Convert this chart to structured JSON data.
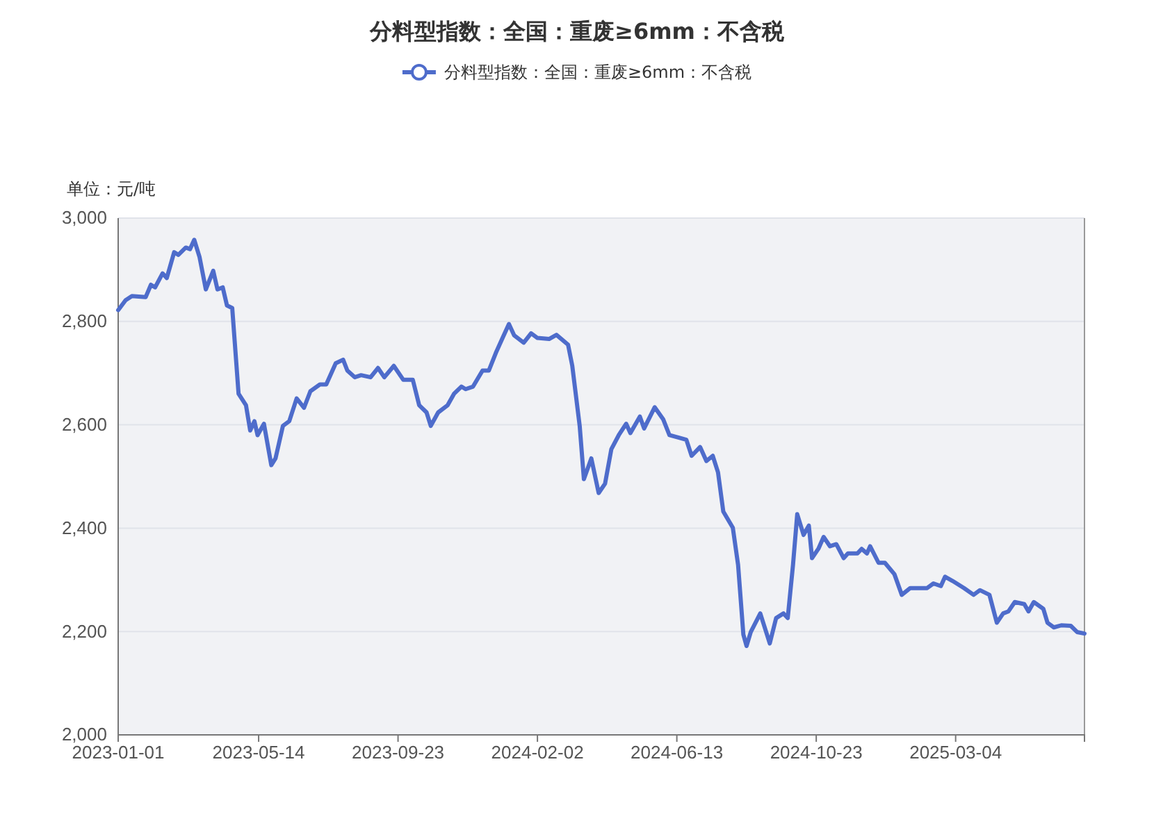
{
  "chart_data": {
    "type": "line",
    "title": "分料型指数：全国：重废≥6mm：不含税",
    "ylabel": "单位：元/吨",
    "legend": "top",
    "grid": "y",
    "line_style": "solid",
    "xlim": [
      "2023-01-01",
      "2025-07-04"
    ],
    "xticks": [
      {
        "value": "2023-01-01",
        "label": "2023-01-01"
      },
      {
        "value": "2023-05-14",
        "label": "2023-05-14"
      },
      {
        "value": "2023-09-23",
        "label": "2023-09-23"
      },
      {
        "value": "2024-02-02",
        "label": "2024-02-02"
      },
      {
        "value": "2024-06-13",
        "label": "2024-06-13"
      },
      {
        "value": "2024-10-23",
        "label": "2024-10-23"
      },
      {
        "value": "2025-03-04",
        "label": "2025-03-04"
      }
    ],
    "ylim": [
      2000,
      3000
    ],
    "yticks": [
      {
        "value": 2000,
        "label": "2,000"
      },
      {
        "value": 2200,
        "label": "2,200"
      },
      {
        "value": 2400,
        "label": "2,400"
      },
      {
        "value": 2600,
        "label": "2,600"
      },
      {
        "value": 2800,
        "label": "2,800"
      },
      {
        "value": 3000,
        "label": "3,000"
      }
    ],
    "series": [
      {
        "name": "分料型指数：全国：重废≥6mm：不含税",
        "color": "#4e6ccb",
        "x": [
          "2023-01-01",
          "2023-01-08",
          "2023-01-14",
          "2023-01-27",
          "2023-02-01",
          "2023-02-05",
          "2023-02-12",
          "2023-02-16",
          "2023-02-23",
          "2023-02-27",
          "2023-03-06",
          "2023-03-10",
          "2023-03-14",
          "2023-03-19",
          "2023-03-25",
          "2023-04-01",
          "2023-04-05",
          "2023-04-10",
          "2023-04-14",
          "2023-04-19",
          "2023-04-25",
          "2023-05-02",
          "2023-05-06",
          "2023-05-10",
          "2023-05-13",
          "2023-05-19",
          "2023-05-26",
          "2023-05-30",
          "2023-06-06",
          "2023-06-12",
          "2023-06-19",
          "2023-06-26",
          "2023-07-02",
          "2023-07-11",
          "2023-07-17",
          "2023-07-26",
          "2023-08-02",
          "2023-08-06",
          "2023-08-13",
          "2023-08-19",
          "2023-08-28",
          "2023-09-04",
          "2023-09-10",
          "2023-09-19",
          "2023-09-28",
          "2023-10-07",
          "2023-10-13",
          "2023-10-20",
          "2023-10-24",
          "2023-10-31",
          "2023-11-09",
          "2023-11-15",
          "2023-11-22",
          "2023-11-26",
          "2023-12-03",
          "2023-12-12",
          "2023-12-18",
          "2023-12-25",
          "2023-12-31",
          "2024-01-06",
          "2024-01-11",
          "2024-01-20",
          "2024-01-27",
          "2024-02-02",
          "2024-02-13",
          "2024-02-20",
          "2024-03-02",
          "2024-03-06",
          "2024-03-13",
          "2024-03-17",
          "2024-03-24",
          "2024-03-31",
          "2024-04-06",
          "2024-04-12",
          "2024-04-19",
          "2024-04-26",
          "2024-04-30",
          "2024-05-09",
          "2024-05-13",
          "2024-05-23",
          "2024-05-31",
          "2024-06-06",
          "2024-06-15",
          "2024-06-22",
          "2024-06-27",
          "2024-07-05",
          "2024-07-11",
          "2024-07-17",
          "2024-07-22",
          "2024-07-27",
          "2024-08-05",
          "2024-08-10",
          "2024-08-15",
          "2024-08-18",
          "2024-08-22",
          "2024-08-31",
          "2024-09-09",
          "2024-09-15",
          "2024-09-22",
          "2024-09-26",
          "2024-10-01",
          "2024-10-05",
          "2024-10-11",
          "2024-10-16",
          "2024-10-19",
          "2024-10-25",
          "2024-10-30",
          "2024-11-05",
          "2024-11-11",
          "2024-11-18",
          "2024-11-22",
          "2024-12-01",
          "2024-12-05",
          "2024-12-10",
          "2024-12-13",
          "2024-12-21",
          "2024-12-27",
          "2025-01-05",
          "2025-01-12",
          "2025-01-20",
          "2025-02-05",
          "2025-02-11",
          "2025-02-18",
          "2025-02-22",
          "2025-03-01",
          "2025-03-12",
          "2025-03-21",
          "2025-03-27",
          "2025-04-05",
          "2025-04-12",
          "2025-04-18",
          "2025-04-23",
          "2025-04-29",
          "2025-05-08",
          "2025-05-12",
          "2025-05-17",
          "2025-05-26",
          "2025-05-30",
          "2025-06-05",
          "2025-06-12",
          "2025-06-21",
          "2025-06-27",
          "2025-07-04"
        ],
        "values": [
          2822,
          2841,
          2849,
          2847,
          2871,
          2866,
          2893,
          2884,
          2934,
          2929,
          2943,
          2940,
          2958,
          2925,
          2862,
          2898,
          2862,
          2866,
          2831,
          2826,
          2660,
          2638,
          2589,
          2607,
          2580,
          2602,
          2522,
          2535,
          2598,
          2607,
          2651,
          2633,
          2665,
          2678,
          2678,
          2719,
          2726,
          2705,
          2692,
          2696,
          2692,
          2710,
          2692,
          2714,
          2687,
          2687,
          2638,
          2624,
          2598,
          2624,
          2638,
          2660,
          2674,
          2669,
          2674,
          2705,
          2705,
          2741,
          2768,
          2795,
          2773,
          2759,
          2777,
          2768,
          2766,
          2774,
          2755,
          2714,
          2598,
          2495,
          2535,
          2468,
          2486,
          2553,
          2580,
          2602,
          2584,
          2616,
          2593,
          2634,
          2611,
          2580,
          2575,
          2571,
          2540,
          2557,
          2530,
          2540,
          2508,
          2432,
          2401,
          2329,
          2194,
          2172,
          2199,
          2235,
          2177,
          2226,
          2235,
          2226,
          2329,
          2427,
          2387,
          2405,
          2342,
          2360,
          2383,
          2365,
          2369,
          2342,
          2351,
          2351,
          2360,
          2351,
          2365,
          2333,
          2333,
          2311,
          2271,
          2284,
          2284,
          2293,
          2288,
          2306,
          2298,
          2284,
          2271,
          2280,
          2271,
          2217,
          2235,
          2239,
          2257,
          2253,
          2239,
          2257,
          2244,
          2217,
          2208,
          2212,
          2211,
          2199,
          2196
        ]
      }
    ]
  }
}
